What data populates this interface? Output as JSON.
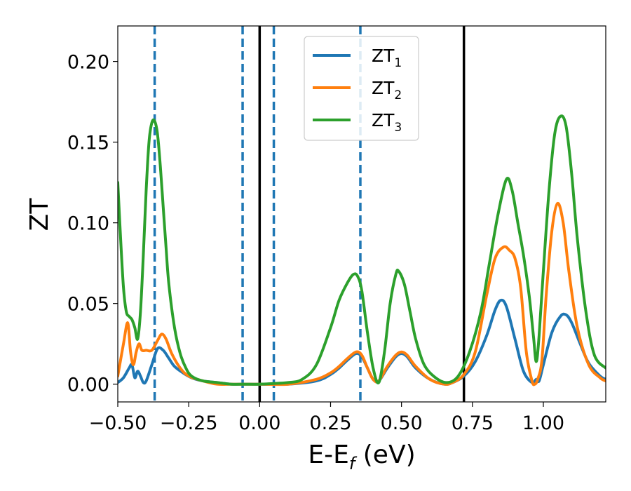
{
  "chart_data": {
    "type": "line",
    "xlabel": "E-E",
    "xlabel_sub": "f",
    "xlabel_unit": " (eV)",
    "ylabel": "ZT",
    "xlim": [
      -0.5,
      1.22
    ],
    "ylim": [
      -0.011,
      0.222
    ],
    "x_ticks": [
      -0.5,
      -0.25,
      0.0,
      0.25,
      0.5,
      0.75,
      1.0
    ],
    "x_tick_labels": [
      "−0.50",
      "−0.25",
      "0.00",
      "0.25",
      "0.50",
      "0.75",
      "1.00"
    ],
    "y_ticks": [
      0.0,
      0.05,
      0.1,
      0.15,
      0.2
    ],
    "y_tick_labels": [
      "0.00",
      "0.05",
      "0.10",
      "0.15",
      "0.20"
    ],
    "grid": false,
    "legend_position": "top-center",
    "vlines_solid": [
      0.0,
      0.72
    ],
    "vlines_dashed": [
      -0.37,
      -0.06,
      0.05,
      0.355
    ],
    "vline_solid_color": "#000000",
    "vline_dashed_color": "#1f77b4",
    "series": [
      {
        "name": "ZT",
        "name_sub": "1",
        "color": "#1f77b4",
        "x": [
          -0.5,
          -0.48,
          -0.46,
          -0.45,
          -0.44,
          -0.43,
          -0.42,
          -0.41,
          -0.4,
          -0.38,
          -0.36,
          -0.34,
          -0.32,
          -0.3,
          -0.27,
          -0.24,
          -0.2,
          -0.15,
          -0.1,
          -0.05,
          0.0,
          0.1,
          0.2,
          0.25,
          0.28,
          0.31,
          0.34,
          0.36,
          0.38,
          0.4,
          0.42,
          0.45,
          0.48,
          0.5,
          0.52,
          0.55,
          0.6,
          0.65,
          0.68,
          0.72,
          0.76,
          0.8,
          0.83,
          0.85,
          0.87,
          0.9,
          0.93,
          0.96,
          0.975,
          0.985,
          1.0,
          1.03,
          1.06,
          1.08,
          1.1,
          1.13,
          1.16,
          1.2,
          1.22
        ],
        "y": [
          0.001,
          0.004,
          0.01,
          0.012,
          0.004,
          0.008,
          0.005,
          0.001,
          0.002,
          0.012,
          0.022,
          0.021,
          0.016,
          0.011,
          0.007,
          0.004,
          0.002,
          0.001,
          0.0,
          0.0,
          0.0,
          0.0,
          0.002,
          0.006,
          0.01,
          0.015,
          0.019,
          0.017,
          0.01,
          0.003,
          0.002,
          0.01,
          0.017,
          0.019,
          0.017,
          0.01,
          0.003,
          0.0,
          0.001,
          0.005,
          0.014,
          0.03,
          0.046,
          0.052,
          0.048,
          0.028,
          0.008,
          0.001,
          0.003,
          0.002,
          0.012,
          0.032,
          0.042,
          0.043,
          0.038,
          0.025,
          0.013,
          0.005,
          0.003
        ]
      },
      {
        "name": "ZT",
        "name_sub": "2",
        "color": "#ff7f0e",
        "x": [
          -0.5,
          -0.48,
          -0.465,
          -0.455,
          -0.445,
          -0.435,
          -0.425,
          -0.415,
          -0.4,
          -0.38,
          -0.36,
          -0.345,
          -0.33,
          -0.31,
          -0.28,
          -0.25,
          -0.2,
          -0.15,
          -0.1,
          -0.05,
          0.0,
          0.1,
          0.2,
          0.25,
          0.28,
          0.31,
          0.34,
          0.36,
          0.38,
          0.4,
          0.42,
          0.45,
          0.48,
          0.5,
          0.52,
          0.55,
          0.6,
          0.65,
          0.68,
          0.72,
          0.76,
          0.8,
          0.83,
          0.86,
          0.88,
          0.9,
          0.92,
          0.94,
          0.96,
          0.97,
          0.98,
          0.995,
          1.01,
          1.03,
          1.05,
          1.07,
          1.09,
          1.12,
          1.16,
          1.2,
          1.22
        ],
        "y": [
          0.005,
          0.025,
          0.038,
          0.02,
          0.012,
          0.02,
          0.025,
          0.021,
          0.021,
          0.021,
          0.027,
          0.031,
          0.028,
          0.019,
          0.01,
          0.005,
          0.002,
          0.0,
          0.0,
          0.0,
          0.0,
          0.0,
          0.003,
          0.007,
          0.011,
          0.016,
          0.02,
          0.018,
          0.01,
          0.003,
          0.002,
          0.011,
          0.018,
          0.02,
          0.018,
          0.011,
          0.003,
          0.0,
          0.001,
          0.006,
          0.02,
          0.055,
          0.078,
          0.085,
          0.083,
          0.078,
          0.06,
          0.02,
          0.002,
          0.0,
          0.003,
          0.015,
          0.055,
          0.095,
          0.112,
          0.1,
          0.07,
          0.035,
          0.012,
          0.004,
          0.002
        ]
      },
      {
        "name": "ZT",
        "name_sub": "3",
        "color": "#2ca02c",
        "x": [
          -0.5,
          -0.49,
          -0.48,
          -0.47,
          -0.46,
          -0.45,
          -0.44,
          -0.43,
          -0.42,
          -0.41,
          -0.4,
          -0.39,
          -0.38,
          -0.37,
          -0.36,
          -0.35,
          -0.34,
          -0.33,
          -0.32,
          -0.3,
          -0.28,
          -0.26,
          -0.24,
          -0.2,
          -0.15,
          -0.1,
          -0.05,
          0.0,
          0.1,
          0.15,
          0.2,
          0.25,
          0.28,
          0.31,
          0.33,
          0.345,
          0.36,
          0.38,
          0.4,
          0.42,
          0.44,
          0.46,
          0.48,
          0.49,
          0.51,
          0.53,
          0.55,
          0.58,
          0.62,
          0.66,
          0.7,
          0.74,
          0.78,
          0.81,
          0.84,
          0.87,
          0.89,
          0.91,
          0.93,
          0.95,
          0.965,
          0.975,
          0.985,
          1.0,
          1.02,
          1.04,
          1.06,
          1.08,
          1.1,
          1.12,
          1.15,
          1.18,
          1.22
        ],
        "y": [
          0.125,
          0.09,
          0.06,
          0.045,
          0.042,
          0.04,
          0.035,
          0.028,
          0.045,
          0.08,
          0.12,
          0.15,
          0.162,
          0.163,
          0.155,
          0.135,
          0.11,
          0.085,
          0.062,
          0.035,
          0.019,
          0.01,
          0.005,
          0.002,
          0.001,
          0.0,
          0.0,
          0.0,
          0.001,
          0.003,
          0.012,
          0.035,
          0.052,
          0.063,
          0.068,
          0.067,
          0.058,
          0.032,
          0.01,
          0.001,
          0.02,
          0.05,
          0.068,
          0.07,
          0.062,
          0.045,
          0.028,
          0.012,
          0.004,
          0.001,
          0.005,
          0.02,
          0.045,
          0.075,
          0.105,
          0.127,
          0.12,
          0.1,
          0.08,
          0.055,
          0.03,
          0.014,
          0.03,
          0.07,
          0.12,
          0.155,
          0.166,
          0.16,
          0.13,
          0.09,
          0.045,
          0.018,
          0.01
        ]
      }
    ]
  }
}
